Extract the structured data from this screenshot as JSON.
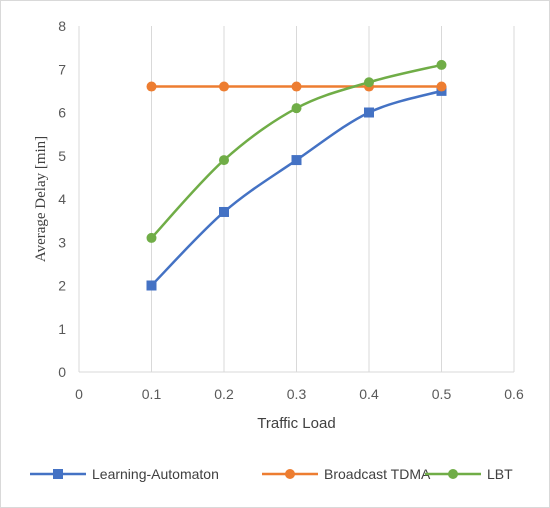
{
  "chart_data": {
    "type": "line",
    "title": "",
    "xlabel": "Traffic Load",
    "ylabel": "Average Delay [min]",
    "xlim": [
      0,
      0.6
    ],
    "ylim": [
      0,
      8
    ],
    "x_ticks": [
      "0",
      "0.1",
      "0.2",
      "0.3",
      "0.4",
      "0.5",
      "0.6"
    ],
    "y_ticks": [
      "0",
      "1",
      "2",
      "3",
      "4",
      "5",
      "6",
      "7",
      "8"
    ],
    "grid": "vertical",
    "legend_position": "bottom",
    "series": [
      {
        "name": "Learning-Automaton",
        "color": "#4472c4",
        "marker": "square",
        "smooth": true,
        "x": [
          0.1,
          0.2,
          0.3,
          0.4,
          0.5
        ],
        "y": [
          2.0,
          3.7,
          4.9,
          6.0,
          6.5
        ]
      },
      {
        "name": "Broadcast TDMA",
        "color": "#ed7d31",
        "marker": "circle",
        "smooth": false,
        "x": [
          0.1,
          0.2,
          0.3,
          0.4,
          0.5
        ],
        "y": [
          6.6,
          6.6,
          6.6,
          6.6,
          6.6
        ]
      },
      {
        "name": "LBT",
        "color": "#70ad47",
        "marker": "circle",
        "smooth": true,
        "x": [
          0.1,
          0.2,
          0.3,
          0.4,
          0.5
        ],
        "y": [
          3.1,
          4.9,
          6.1,
          6.7,
          7.1
        ]
      }
    ]
  }
}
